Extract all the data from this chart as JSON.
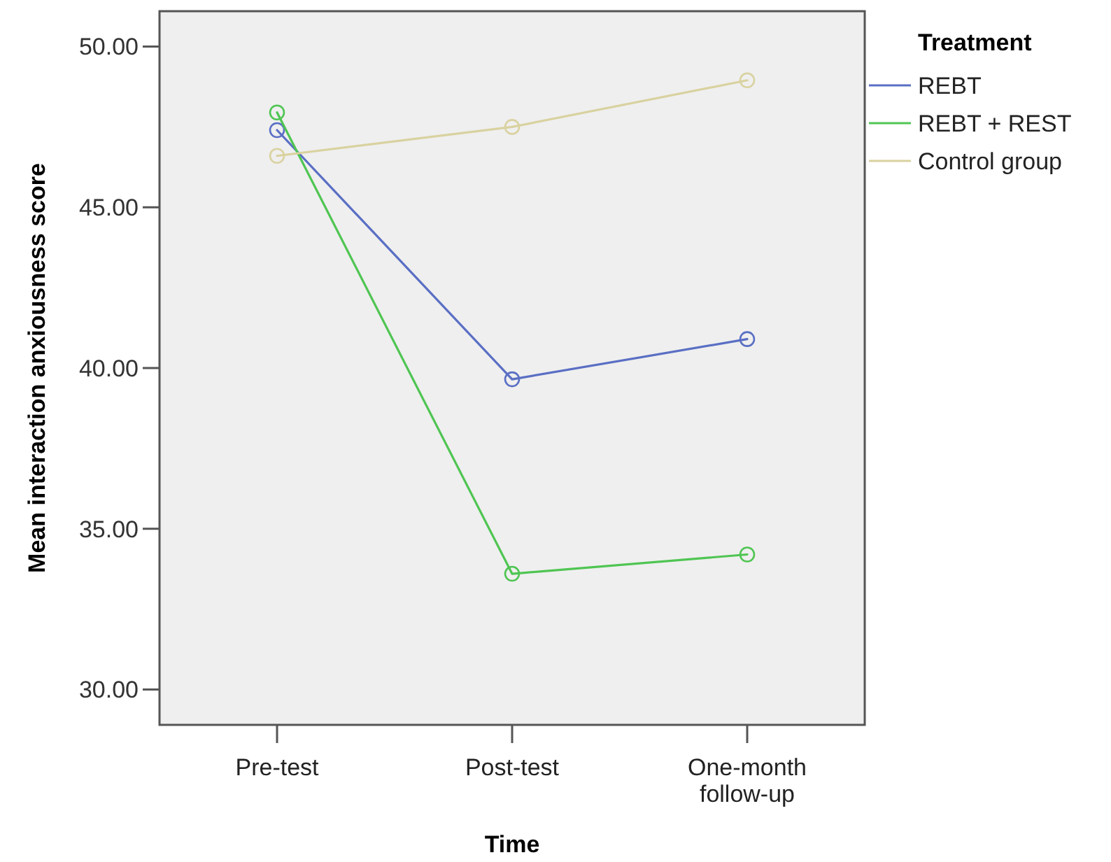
{
  "chart_data": {
    "type": "line",
    "xlabel": "Time",
    "ylabel": "Mean interaction anxiousness score",
    "legend_title": "Treatment",
    "categories": [
      "Pre-test",
      "Post-test",
      "One-month follow-up"
    ],
    "series": [
      {
        "name": "REBT",
        "color": "#5a6fc4",
        "values": [
          47.4,
          39.65,
          40.9
        ]
      },
      {
        "name": "REBT + REST",
        "color": "#4fc552",
        "values": [
          47.95,
          33.6,
          34.2
        ]
      },
      {
        "name": "Control group",
        "color": "#d9d2a0",
        "values": [
          46.6,
          47.5,
          48.95
        ]
      }
    ],
    "ylim": [
      28.9,
      51.1
    ],
    "yticks": [
      {
        "value": 30,
        "label": "30.00"
      },
      {
        "value": 35,
        "label": "35.00"
      },
      {
        "value": 40,
        "label": "40.00"
      },
      {
        "value": 45,
        "label": "45.00"
      },
      {
        "value": 50,
        "label": "50.00"
      }
    ],
    "grid": false,
    "legend": "right",
    "marker": "circle",
    "line_style": "solid"
  }
}
